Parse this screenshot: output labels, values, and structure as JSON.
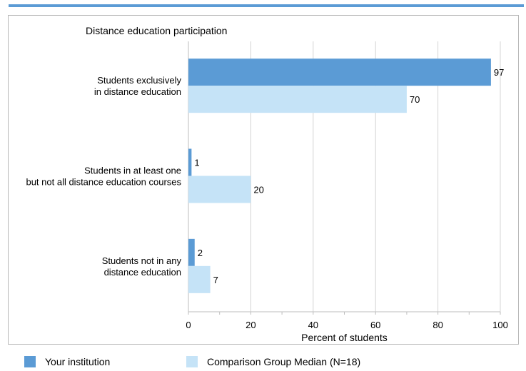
{
  "chart_data": {
    "type": "bar",
    "orientation": "horizontal",
    "title": "Distance education participation",
    "xlabel": "Percent of students",
    "ylabel": "",
    "xlim": [
      0,
      100
    ],
    "xticks": [
      0,
      20,
      40,
      60,
      80,
      100
    ],
    "grid": true,
    "legend_position": "bottom",
    "categories": [
      [
        "Students exclusively",
        "in distance education"
      ],
      [
        "Students in at least one",
        "but not all distance education courses"
      ],
      [
        "Students not in any",
        "distance education"
      ]
    ],
    "series": [
      {
        "name": "Your institution",
        "color": "#5b9bd5",
        "values": [
          97,
          1,
          2
        ]
      },
      {
        "name": "Comparison Group Median (N=18)",
        "color": "#c5e3f7",
        "values": [
          70,
          20,
          7
        ]
      }
    ]
  }
}
